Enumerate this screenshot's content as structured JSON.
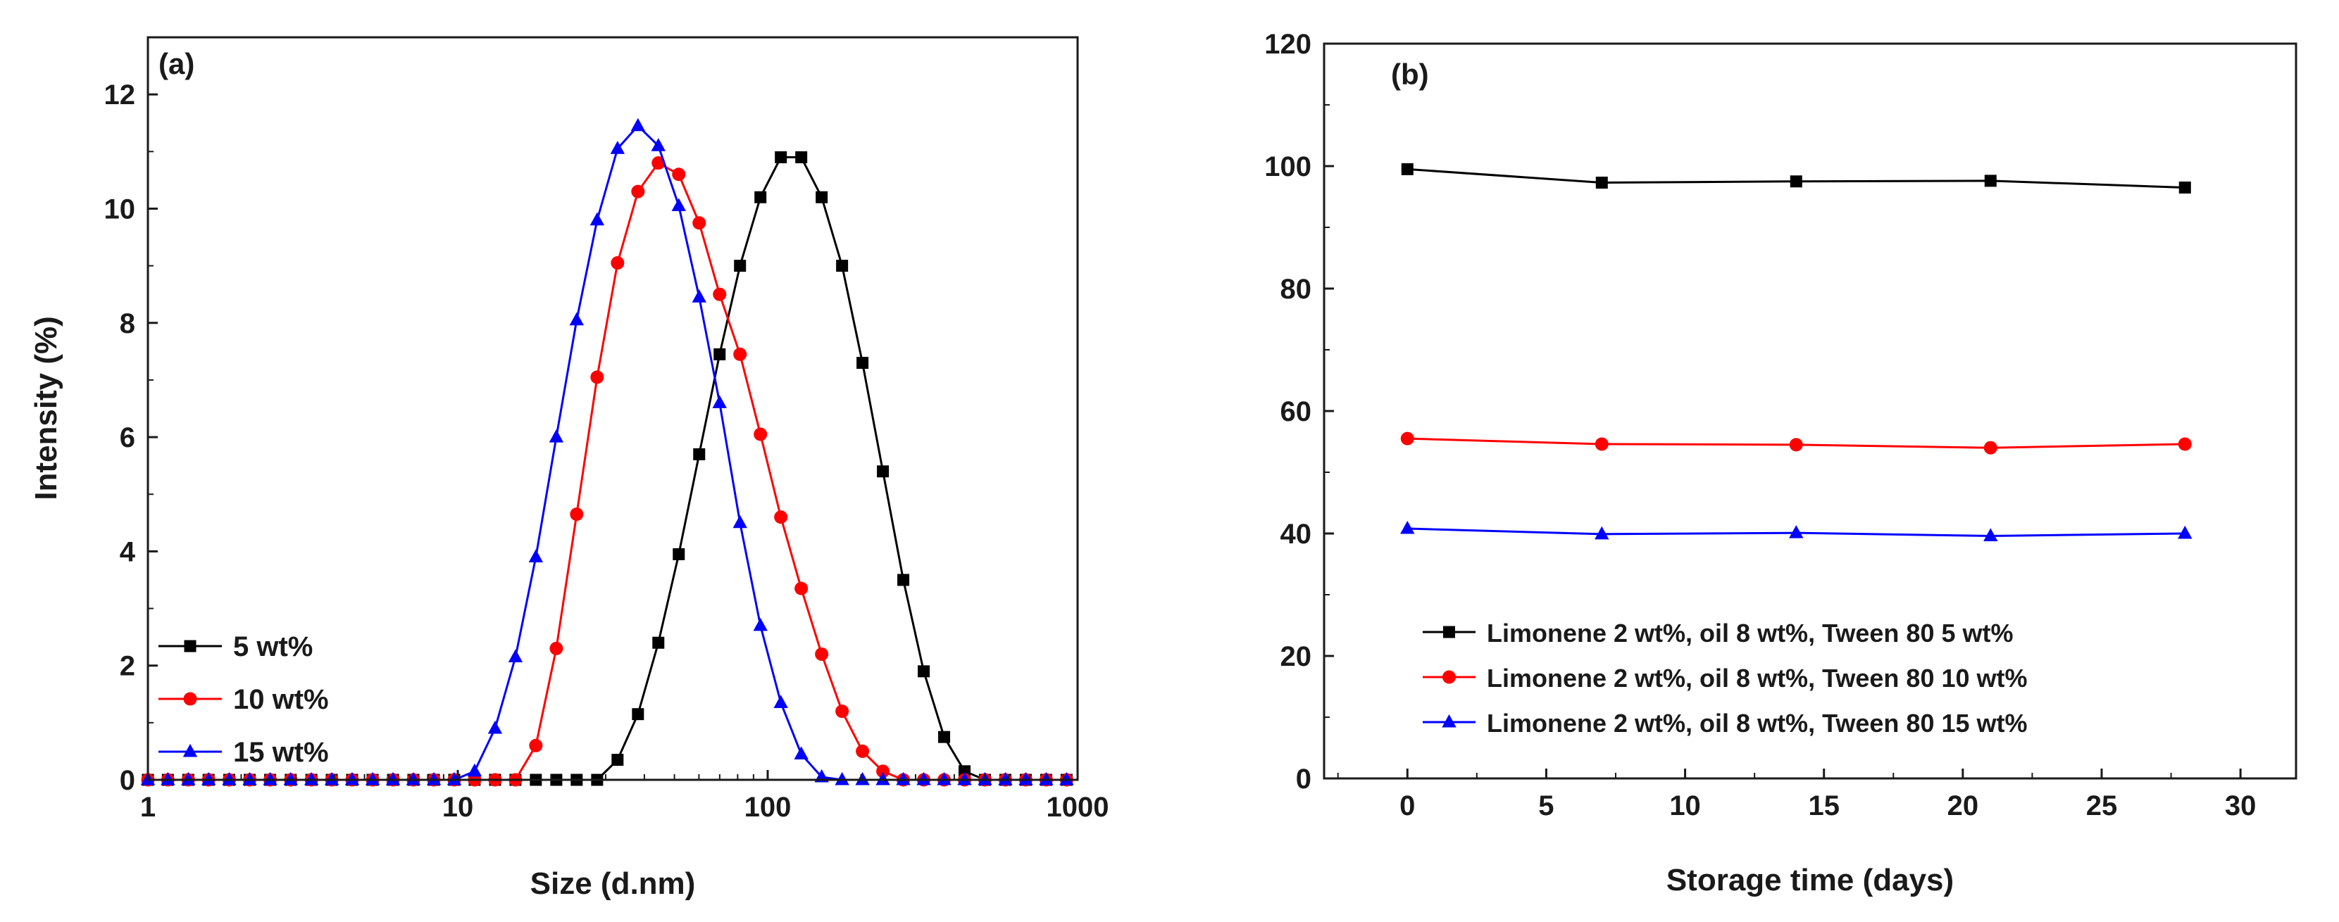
{
  "chart_data": [
    {
      "panel": "(a)",
      "type": "line",
      "xscale": "log",
      "xlabel": "Size (d.nm)",
      "ylabel": "Intensity (%)",
      "xlim": [
        1,
        1000
      ],
      "ylim": [
        0,
        13
      ],
      "xticks": [
        1,
        10,
        100,
        1000
      ],
      "xtick_labels": [
        "1",
        "10",
        "100",
        "1000"
      ],
      "yticks": [
        0,
        2,
        4,
        6,
        8,
        10,
        12
      ],
      "ytick_labels": [
        "0",
        "2",
        "4",
        "6",
        "8",
        "10",
        "12"
      ],
      "legend_position": "bottom-left",
      "x": [
        1.0,
        1.16,
        1.35,
        1.57,
        1.83,
        2.13,
        2.48,
        2.89,
        3.37,
        3.92,
        4.56,
        5.31,
        6.18,
        7.19,
        8.37,
        9.74,
        11.33,
        13.19,
        15.35,
        17.86,
        20.79,
        24.19,
        28.16,
        32.77,
        38.14,
        44.38,
        51.65,
        60.11,
        69.96,
        81.41,
        94.75,
        110.27,
        128.32,
        149.34,
        173.8,
        202.26,
        235.38,
        273.93,
        318.79,
        371.0,
        431.75,
        502.46,
        584.75,
        680.52,
        791.96,
        921.66
      ],
      "series": [
        {
          "name": "5 wt%",
          "color": "#000000",
          "marker": "square",
          "values": [
            0,
            0,
            0,
            0,
            0,
            0,
            0,
            0,
            0,
            0,
            0,
            0,
            0,
            0,
            0,
            0,
            0,
            0,
            0,
            0,
            0,
            0,
            0,
            0.35,
            1.15,
            2.4,
            3.95,
            5.7,
            7.45,
            9.0,
            10.2,
            10.9,
            10.9,
            10.2,
            9.0,
            7.3,
            5.4,
            3.5,
            1.9,
            0.75,
            0.15,
            0,
            0,
            0,
            0,
            0
          ]
        },
        {
          "name": "10 wt%",
          "color": "#ff0000",
          "marker": "circle",
          "values": [
            0,
            0,
            0,
            0,
            0,
            0,
            0,
            0,
            0,
            0,
            0,
            0,
            0,
            0,
            0,
            0,
            0,
            0,
            0,
            0.6,
            2.3,
            4.65,
            7.05,
            9.05,
            10.3,
            10.8,
            10.6,
            9.75,
            8.5,
            7.45,
            6.05,
            4.6,
            3.35,
            2.2,
            1.2,
            0.5,
            0.15,
            0,
            0,
            0,
            0,
            0,
            0,
            0,
            0,
            0
          ]
        },
        {
          "name": "15 wt%",
          "color": "#0000ff",
          "marker": "triangle",
          "values": [
            0,
            0,
            0,
            0,
            0,
            0,
            0,
            0,
            0,
            0,
            0,
            0,
            0,
            0,
            0,
            0,
            0.15,
            0.9,
            2.15,
            3.9,
            6.0,
            8.05,
            9.8,
            11.05,
            11.45,
            11.1,
            10.05,
            8.45,
            6.6,
            4.5,
            2.7,
            1.35,
            0.45,
            0.05,
            0,
            0,
            0,
            0,
            0,
            0,
            0,
            0,
            0,
            0,
            0,
            0
          ]
        }
      ]
    },
    {
      "panel": "(b)",
      "type": "line",
      "xlabel": "Storage time (days)",
      "ylabel": "",
      "xlim": [
        -3,
        32
      ],
      "ylim": [
        0,
        120
      ],
      "xticks": [
        0,
        5,
        10,
        15,
        20,
        25,
        30
      ],
      "xtick_labels": [
        "0",
        "5",
        "10",
        "15",
        "20",
        "25",
        "30"
      ],
      "yticks": [
        0,
        20,
        40,
        60,
        80,
        100,
        120
      ],
      "ytick_labels": [
        "0",
        "20",
        "40",
        "60",
        "80",
        "100",
        "120"
      ],
      "legend_position": "bottom-right",
      "x": [
        0,
        7,
        14,
        21,
        28
      ],
      "series": [
        {
          "name": "Limonene 2 wt%, oil 8 wt%, Tween 80 5 wt%",
          "color": "#000000",
          "marker": "square",
          "values": [
            99.5,
            97.3,
            97.5,
            97.6,
            96.5
          ]
        },
        {
          "name": "Limonene 2 wt%, oil 8 wt%, Tween 80 10 wt%",
          "color": "#ff0000",
          "marker": "circle",
          "values": [
            55.5,
            54.6,
            54.5,
            54.0,
            54.6
          ]
        },
        {
          "name": "Limonene 2 wt%, oil 8 wt%, Tween 80 15 wt%",
          "color": "#0000ff",
          "marker": "triangle",
          "values": [
            40.8,
            39.9,
            40.1,
            39.6,
            40.0
          ]
        }
      ]
    }
  ]
}
